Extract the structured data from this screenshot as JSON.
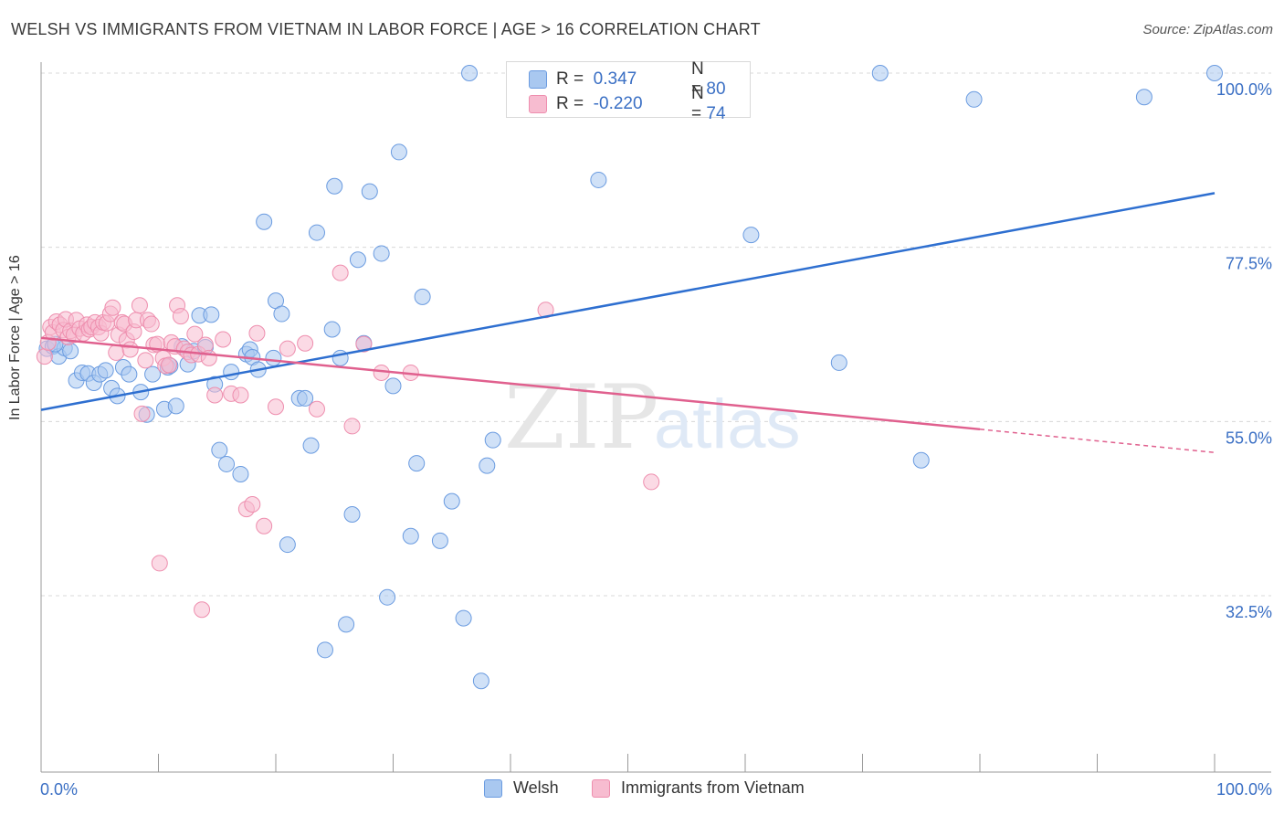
{
  "title": "WELSH VS IMMIGRANTS FROM VIETNAM IN LABOR FORCE | AGE > 16 CORRELATION CHART",
  "source": "Source: ZipAtlas.com",
  "colors": {
    "welsh_fill": "#a9c8f0",
    "welsh_stroke": "#6a9be0",
    "welsh_line": "#2e6fd0",
    "viet_fill": "#f7bcd0",
    "viet_stroke": "#ee8eae",
    "viet_line": "#e0608e",
    "axis_label": "#3a6fc4",
    "grid": "#d8d8d8"
  },
  "legend_top": {
    "rows": [
      {
        "r_label": "R =",
        "r_value": "0.347",
        "n_label": "N =",
        "n_value": "80"
      },
      {
        "r_label": "R =",
        "r_value": "-0.220",
        "n_label": "N =",
        "n_value": "74"
      }
    ]
  },
  "chart_data": {
    "type": "scatter",
    "title": "WELSH VS IMMIGRANTS FROM VIETNAM IN LABOR FORCE | AGE > 16 CORRELATION CHART",
    "xlabel": "",
    "ylabel": "In Labor Force | Age > 16",
    "xlim": [
      0,
      100
    ],
    "ylim": [
      15,
      102
    ],
    "x_tick_labels": [
      "0.0%",
      "100.0%"
    ],
    "y_ticks": [
      32.5,
      55.0,
      77.5,
      100.0
    ],
    "y_tick_labels": [
      "32.5%",
      "55.0%",
      "77.5%",
      "100.0%"
    ],
    "grid": true,
    "legend_position": "bottom",
    "watermark": "ZIPatlas",
    "series": [
      {
        "name": "Welsh",
        "r": 0.347,
        "n": 80,
        "trend": {
          "x": [
            0,
            100
          ],
          "y": [
            56.5,
            84.5
          ]
        },
        "points": [
          [
            0.5,
            64.4
          ],
          [
            1.0,
            64.7
          ],
          [
            1.5,
            63.4
          ],
          [
            2.0,
            64.5
          ],
          [
            2.5,
            64.1
          ],
          [
            3.0,
            60.3
          ],
          [
            3.5,
            61.3
          ],
          [
            4.0,
            61.2
          ],
          [
            4.5,
            60.0
          ],
          [
            5.0,
            61.1
          ],
          [
            5.5,
            61.6
          ],
          [
            6.0,
            59.3
          ],
          [
            6.5,
            58.3
          ],
          [
            7.0,
            62.0
          ],
          [
            7.5,
            61.1
          ],
          [
            8.5,
            58.8
          ],
          [
            9.0,
            55.9
          ],
          [
            9.5,
            61.1
          ],
          [
            10.5,
            56.6
          ],
          [
            10.8,
            62.0
          ],
          [
            11.0,
            62.2
          ],
          [
            11.5,
            57.0
          ],
          [
            12.0,
            64.7
          ],
          [
            12.5,
            62.4
          ],
          [
            13.0,
            64.1
          ],
          [
            13.5,
            68.7
          ],
          [
            14.0,
            64.6
          ],
          [
            14.5,
            68.8
          ],
          [
            14.8,
            59.8
          ],
          [
            15.2,
            51.3
          ],
          [
            15.8,
            49.5
          ],
          [
            16.2,
            61.4
          ],
          [
            17.0,
            48.2
          ],
          [
            17.5,
            63.7
          ],
          [
            17.8,
            64.3
          ],
          [
            18.0,
            63.3
          ],
          [
            18.5,
            61.7
          ],
          [
            19.0,
            80.8
          ],
          [
            19.8,
            63.2
          ],
          [
            20.0,
            70.6
          ],
          [
            20.5,
            68.9
          ],
          [
            21.0,
            39.1
          ],
          [
            22.0,
            58.0
          ],
          [
            22.5,
            58.0
          ],
          [
            23.0,
            51.9
          ],
          [
            23.5,
            79.4
          ],
          [
            24.2,
            25.5
          ],
          [
            24.8,
            66.9
          ],
          [
            25.0,
            85.4
          ],
          [
            25.5,
            63.2
          ],
          [
            26.0,
            28.8
          ],
          [
            26.5,
            43.0
          ],
          [
            27.0,
            75.9
          ],
          [
            27.5,
            65.1
          ],
          [
            28.0,
            84.7
          ],
          [
            29.0,
            76.7
          ],
          [
            29.5,
            32.3
          ],
          [
            30.0,
            59.6
          ],
          [
            30.5,
            89.8
          ],
          [
            31.5,
            40.2
          ],
          [
            32.0,
            49.6
          ],
          [
            32.5,
            71.1
          ],
          [
            34.0,
            39.6
          ],
          [
            35.0,
            44.7
          ],
          [
            36.0,
            29.6
          ],
          [
            36.5,
            100.0
          ],
          [
            37.5,
            21.5
          ],
          [
            38.0,
            49.3
          ],
          [
            38.5,
            52.6
          ],
          [
            41.0,
            100.0
          ],
          [
            45.0,
            100.0
          ],
          [
            47.5,
            86.2
          ],
          [
            60.5,
            79.1
          ],
          [
            68.0,
            62.6
          ],
          [
            71.5,
            100.0
          ],
          [
            75.0,
            50.0
          ],
          [
            79.5,
            96.6
          ],
          [
            94.0,
            96.9
          ],
          [
            100.0,
            100.0
          ],
          [
            1.2,
            65.0
          ]
        ]
      },
      {
        "name": "Immigrants from Vietnam",
        "r": -0.22,
        "n": 74,
        "trend": {
          "x": [
            0,
            80
          ],
          "y": [
            65.8,
            54.0
          ]
        },
        "trend_dashed": {
          "x": [
            80,
            100
          ],
          "y": [
            54.0,
            51.0
          ]
        },
        "points": [
          [
            0.3,
            63.4
          ],
          [
            0.6,
            65.2
          ],
          [
            0.8,
            67.2
          ],
          [
            1.0,
            66.5
          ],
          [
            1.3,
            67.9
          ],
          [
            1.6,
            67.5
          ],
          [
            1.9,
            66.8
          ],
          [
            2.1,
            68.2
          ],
          [
            2.3,
            65.9
          ],
          [
            2.5,
            66.7
          ],
          [
            2.8,
            66.2
          ],
          [
            3.0,
            68.1
          ],
          [
            3.3,
            67.0
          ],
          [
            3.6,
            66.4
          ],
          [
            3.9,
            67.5
          ],
          [
            4.1,
            66.9
          ],
          [
            4.3,
            67.2
          ],
          [
            4.6,
            67.8
          ],
          [
            4.9,
            67.2
          ],
          [
            5.1,
            66.4
          ],
          [
            5.3,
            67.8
          ],
          [
            5.6,
            67.7
          ],
          [
            5.9,
            68.9
          ],
          [
            6.1,
            69.7
          ],
          [
            6.4,
            63.9
          ],
          [
            6.6,
            66.2
          ],
          [
            6.9,
            67.8
          ],
          [
            7.1,
            67.6
          ],
          [
            7.3,
            65.5
          ],
          [
            7.6,
            64.3
          ],
          [
            7.9,
            66.6
          ],
          [
            8.1,
            68.1
          ],
          [
            8.4,
            70.0
          ],
          [
            8.6,
            56.0
          ],
          [
            8.9,
            62.9
          ],
          [
            9.1,
            68.1
          ],
          [
            9.4,
            67.6
          ],
          [
            9.6,
            64.9
          ],
          [
            9.9,
            65.0
          ],
          [
            10.1,
            36.7
          ],
          [
            10.4,
            63.2
          ],
          [
            10.6,
            62.2
          ],
          [
            10.9,
            62.3
          ],
          [
            11.1,
            65.2
          ],
          [
            11.4,
            64.7
          ],
          [
            11.6,
            70.0
          ],
          [
            11.9,
            68.6
          ],
          [
            12.2,
            64.4
          ],
          [
            12.5,
            64.0
          ],
          [
            12.8,
            63.6
          ],
          [
            13.1,
            66.3
          ],
          [
            13.4,
            63.7
          ],
          [
            13.7,
            30.7
          ],
          [
            14.0,
            64.9
          ],
          [
            14.3,
            63.2
          ],
          [
            14.8,
            58.4
          ],
          [
            15.5,
            65.6
          ],
          [
            16.2,
            58.6
          ],
          [
            17.0,
            58.4
          ],
          [
            17.5,
            43.7
          ],
          [
            18.0,
            44.3
          ],
          [
            18.4,
            66.4
          ],
          [
            19.0,
            41.5
          ],
          [
            20.0,
            56.9
          ],
          [
            21.0,
            64.4
          ],
          [
            22.5,
            65.1
          ],
          [
            23.5,
            56.6
          ],
          [
            25.5,
            74.2
          ],
          [
            26.5,
            54.4
          ],
          [
            27.5,
            65.0
          ],
          [
            29.0,
            61.3
          ],
          [
            31.5,
            61.3
          ],
          [
            43.0,
            69.4
          ],
          [
            52.0,
            47.2
          ]
        ]
      }
    ]
  },
  "legend_bottom": [
    {
      "label": "Welsh"
    },
    {
      "label": "Immigrants from Vietnam"
    }
  ]
}
